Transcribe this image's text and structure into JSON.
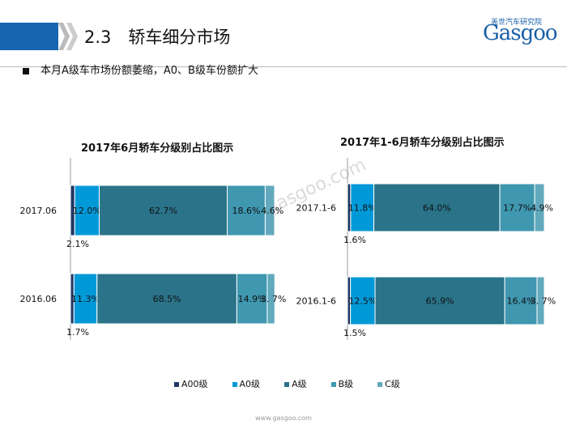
{
  "header": {
    "title": "2.3　轿车细分市场",
    "logo_cn": "盖世汽车研究院",
    "logo_en": "Gasgoo"
  },
  "bullet": "本月A级车市场份额萎缩，A0、B级车份额扩大",
  "watermark": "auto.gasgoo.com",
  "footer": "www.gasgoo.com",
  "colors": {
    "A00级": "#1f3864",
    "A0级": "#0099d8",
    "A级": "#2a7389",
    "B级": "#3f97b0",
    "C级": "#62a9bd"
  },
  "chart_data": [
    {
      "type": "bar",
      "stacked": true,
      "orientation": "horizontal",
      "title": "2017年6月轿车分级别占比图示",
      "categories": [
        "2017.06",
        "2016.06"
      ],
      "series": [
        {
          "name": "A00级",
          "values": [
            2.1,
            1.7
          ]
        },
        {
          "name": "A0级",
          "values": [
            12.0,
            11.3
          ]
        },
        {
          "name": "A级",
          "values": [
            62.7,
            68.5
          ]
        },
        {
          "name": "B级",
          "values": [
            18.6,
            14.9
          ]
        },
        {
          "name": "C级",
          "values": [
            4.6,
            3.7
          ]
        }
      ],
      "labels": [
        [
          "2.1%",
          "12.0%",
          "62.7%",
          "18.6%",
          "4.6%"
        ],
        [
          "1.7%",
          "11.3%",
          "68.5%",
          "14.9%",
          "3. 7%"
        ]
      ],
      "xlim": [
        0,
        100
      ]
    },
    {
      "type": "bar",
      "stacked": true,
      "orientation": "horizontal",
      "title": "2017年1-6月轿车分级别占比图示",
      "categories": [
        "2017.1-6",
        "2016.1-6"
      ],
      "series": [
        {
          "name": "A00级",
          "values": [
            1.6,
            1.5
          ]
        },
        {
          "name": "A0级",
          "values": [
            11.8,
            12.5
          ]
        },
        {
          "name": "A级",
          "values": [
            64.0,
            65.9
          ]
        },
        {
          "name": "B级",
          "values": [
            17.7,
            16.4
          ]
        },
        {
          "name": "C级",
          "values": [
            4.9,
            3.7
          ]
        }
      ],
      "labels": [
        [
          "1.6%",
          "11.8%",
          "64.0%",
          "17.7%",
          "4.9%"
        ],
        [
          "1.5%",
          "12.5%",
          "65.9%",
          "16.4%",
          "3. 7%"
        ]
      ],
      "xlim": [
        0,
        100
      ]
    }
  ],
  "legend": [
    "A00级",
    "A0级",
    "A级",
    "B级",
    "C级"
  ]
}
